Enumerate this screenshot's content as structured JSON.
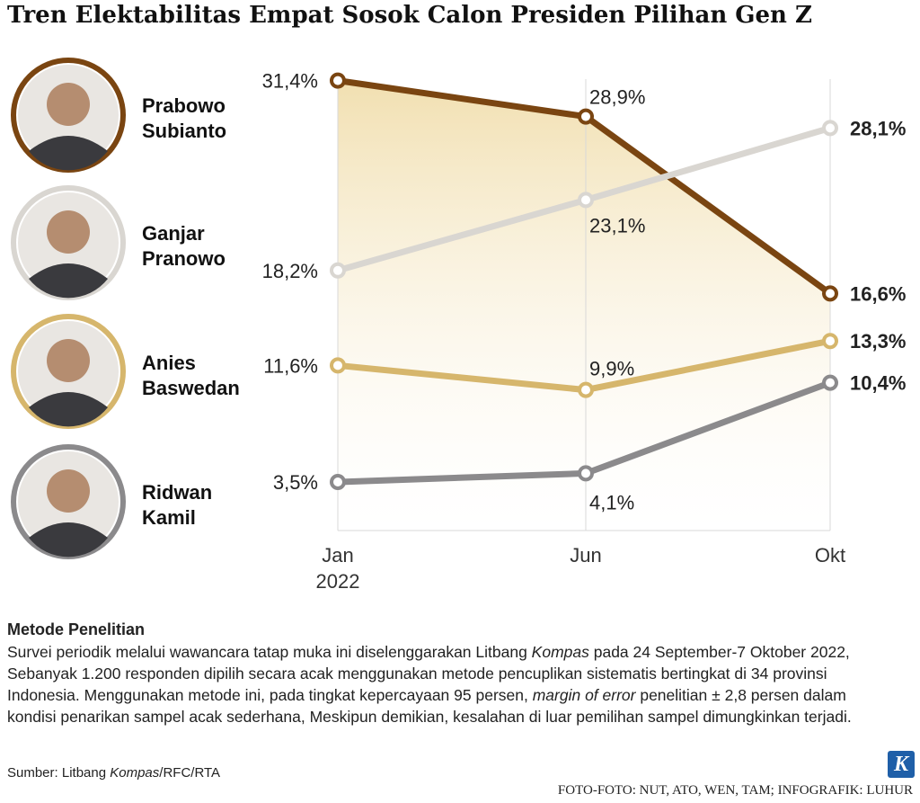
{
  "chart_data": {
    "type": "line",
    "title": "Tren Elektabilitas Empat Sosok Calon Presiden Pilihan Gen Z",
    "categories": [
      "Jan",
      "Jun",
      "Okt"
    ],
    "year": "2022",
    "ylim": [
      0,
      35
    ],
    "series": [
      {
        "name": "Prabowo Subianto",
        "color": "#7a4511",
        "values": [
          31.4,
          28.9,
          16.6
        ],
        "value_labels": [
          "31,4%",
          "28,9%",
          "16,6%"
        ],
        "area": true
      },
      {
        "name": "Ganjar Pranowo",
        "color": "#d9d6d1",
        "values": [
          18.2,
          23.1,
          28.1
        ],
        "value_labels": [
          "18,2%",
          "23,1%",
          "28,1%"
        ]
      },
      {
        "name": "Anies Baswedan",
        "color": "#d6b66c",
        "values": [
          11.6,
          9.9,
          13.3
        ],
        "value_labels": [
          "11,6%",
          "9,9%",
          "13,3%"
        ]
      },
      {
        "name": "Ridwan Kamil",
        "color": "#8b8a8c",
        "values": [
          3.5,
          4.1,
          10.4
        ],
        "value_labels": [
          "3,5%",
          "4,1%",
          "10,4%"
        ]
      }
    ]
  },
  "note": {
    "heading": "Metode Penelitian",
    "paragraph": [
      {
        "text": "Survei periodik melalui wawancara tatap muka ini diselenggarakan Litbang "
      },
      {
        "text": "Kompas",
        "italic": true
      },
      {
        "text": " pada 24 September-7 Oktober 2022, Sebanyak 1.200 responden dipilih secara acak menggunakan metode pencuplikan sistematis bertingkat di 34 provinsi Indonesia. Menggunakan metode ini, pada tingkat kepercayaan 95 persen, "
      },
      {
        "text": "margin of error",
        "italic": true
      },
      {
        "text": " penelitian ± 2,8 persen dalam kondisi penarikan sampel acak sederhana, Meskipun demikian, kesalahan di luar pemilihan sampel dimungkinkan terjadi."
      }
    ]
  },
  "source": [
    {
      "text": "Sumber: Litbang "
    },
    {
      "text": "Kompas",
      "italic": true
    },
    {
      "text": "/RFC/RTA"
    }
  ],
  "credit": "FOTO-FOTO: NUT, ATO, WEN, TAM; INFOGRAFIK: LUHUR",
  "logo": "K"
}
